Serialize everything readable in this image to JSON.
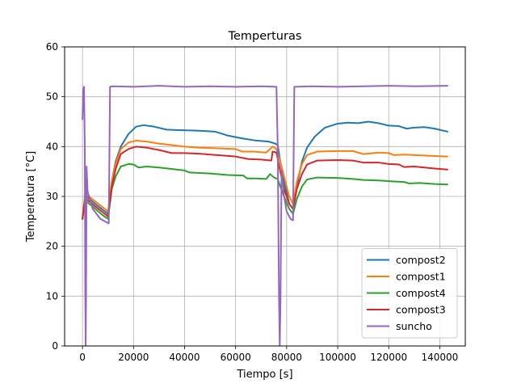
{
  "chart_data": {
    "type": "line",
    "title": "Temperturas",
    "xlabel": "Tiempo [s]",
    "ylabel": "Temperatura [°C]",
    "xlim": [
      -7000,
      150000
    ],
    "ylim": [
      0,
      60
    ],
    "xticks": [
      0,
      20000,
      40000,
      60000,
      80000,
      100000,
      120000,
      140000
    ],
    "yticks": [
      0,
      10,
      20,
      30,
      40,
      50,
      60
    ],
    "grid": true,
    "legend_position": "lower-right",
    "series": [
      {
        "name": "compost2",
        "color": "#1f77b4",
        "points": [
          [
            0,
            25.5
          ],
          [
            1000,
            30.0
          ],
          [
            2000,
            29.8
          ],
          [
            5000,
            28.5
          ],
          [
            8000,
            27.3
          ],
          [
            10000,
            26.5
          ],
          [
            11500,
            33.0
          ],
          [
            13000,
            37.0
          ],
          [
            15000,
            40.0
          ],
          [
            18000,
            42.5
          ],
          [
            21000,
            44.0
          ],
          [
            24000,
            44.3
          ],
          [
            28000,
            44.0
          ],
          [
            33000,
            43.4
          ],
          [
            38000,
            43.3
          ],
          [
            45000,
            43.2
          ],
          [
            52000,
            43.0
          ],
          [
            57000,
            42.2
          ],
          [
            62000,
            41.7
          ],
          [
            68000,
            41.2
          ],
          [
            73000,
            41.0
          ],
          [
            75500,
            40.6
          ],
          [
            76500,
            40.3
          ],
          [
            77500,
            37.0
          ],
          [
            79000,
            33.0
          ],
          [
            81000,
            28.5
          ],
          [
            82500,
            27.5
          ],
          [
            84000,
            32.0
          ],
          [
            86000,
            37.0
          ],
          [
            88000,
            39.8
          ],
          [
            91000,
            42.0
          ],
          [
            95000,
            43.8
          ],
          [
            100000,
            44.6
          ],
          [
            104000,
            44.8
          ],
          [
            108000,
            44.7
          ],
          [
            112000,
            45.0
          ],
          [
            116000,
            44.7
          ],
          [
            120000,
            44.2
          ],
          [
            124000,
            44.1
          ],
          [
            127000,
            43.6
          ],
          [
            130000,
            43.8
          ],
          [
            134000,
            43.9
          ],
          [
            138000,
            43.6
          ],
          [
            143000,
            43.0
          ]
        ]
      },
      {
        "name": "compost1",
        "color": "#ff7f0e",
        "points": [
          [
            0,
            25.5
          ],
          [
            1000,
            30.5
          ],
          [
            2000,
            30.2
          ],
          [
            5000,
            29.0
          ],
          [
            8000,
            27.8
          ],
          [
            10000,
            27.0
          ],
          [
            11500,
            33.0
          ],
          [
            13000,
            36.5
          ],
          [
            15000,
            39.5
          ],
          [
            18000,
            40.8
          ],
          [
            21000,
            41.2
          ],
          [
            25000,
            41.0
          ],
          [
            30000,
            40.6
          ],
          [
            35000,
            40.3
          ],
          [
            40000,
            40.0
          ],
          [
            45000,
            39.8
          ],
          [
            50000,
            39.7
          ],
          [
            55000,
            39.6
          ],
          [
            60000,
            39.5
          ],
          [
            62500,
            39.0
          ],
          [
            67000,
            39.0
          ],
          [
            72000,
            38.8
          ],
          [
            74500,
            40.0
          ],
          [
            76000,
            39.5
          ],
          [
            77500,
            37.0
          ],
          [
            79000,
            34.0
          ],
          [
            81000,
            30.0
          ],
          [
            82500,
            28.5
          ],
          [
            84000,
            33.0
          ],
          [
            86000,
            36.5
          ],
          [
            88000,
            38.3
          ],
          [
            92000,
            39.0
          ],
          [
            100000,
            39.1
          ],
          [
            106000,
            39.1
          ],
          [
            110000,
            38.5
          ],
          [
            116000,
            38.8
          ],
          [
            120000,
            38.7
          ],
          [
            122000,
            38.3
          ],
          [
            126000,
            38.4
          ],
          [
            130000,
            38.3
          ],
          [
            134000,
            38.2
          ],
          [
            138000,
            38.1
          ],
          [
            143000,
            38.0
          ]
        ]
      },
      {
        "name": "compost4",
        "color": "#2ca02c",
        "points": [
          [
            0,
            25.5
          ],
          [
            1000,
            29.0
          ],
          [
            2000,
            28.8
          ],
          [
            5000,
            27.5
          ],
          [
            8000,
            26.2
          ],
          [
            10000,
            25.5
          ],
          [
            11500,
            31.5
          ],
          [
            13000,
            34.0
          ],
          [
            15000,
            36.0
          ],
          [
            18000,
            36.5
          ],
          [
            20000,
            36.4
          ],
          [
            22000,
            35.8
          ],
          [
            25000,
            36.0
          ],
          [
            30000,
            35.8
          ],
          [
            40000,
            35.2
          ],
          [
            42000,
            34.8
          ],
          [
            50000,
            34.6
          ],
          [
            57000,
            34.3
          ],
          [
            63000,
            34.2
          ],
          [
            64500,
            33.6
          ],
          [
            68000,
            33.6
          ],
          [
            72000,
            33.5
          ],
          [
            73500,
            34.5
          ],
          [
            75000,
            33.8
          ],
          [
            76500,
            33.5
          ],
          [
            77500,
            32.0
          ],
          [
            79000,
            30.0
          ],
          [
            81000,
            27.5
          ],
          [
            82500,
            26.5
          ],
          [
            84000,
            29.5
          ],
          [
            86000,
            32.0
          ],
          [
            88000,
            33.4
          ],
          [
            92000,
            33.8
          ],
          [
            100000,
            33.7
          ],
          [
            106000,
            33.5
          ],
          [
            110000,
            33.3
          ],
          [
            116000,
            33.2
          ],
          [
            122000,
            33.0
          ],
          [
            126000,
            32.9
          ],
          [
            128000,
            32.6
          ],
          [
            132000,
            32.7
          ],
          [
            138000,
            32.5
          ],
          [
            143000,
            32.4
          ]
        ]
      },
      {
        "name": "compost3",
        "color": "#d62728",
        "points": [
          [
            0,
            25.5
          ],
          [
            1000,
            29.5
          ],
          [
            2000,
            29.3
          ],
          [
            5000,
            28.0
          ],
          [
            8000,
            26.8
          ],
          [
            10000,
            26.0
          ],
          [
            11500,
            32.0
          ],
          [
            13000,
            35.5
          ],
          [
            15000,
            38.5
          ],
          [
            18000,
            39.5
          ],
          [
            21000,
            40.0
          ],
          [
            25000,
            39.8
          ],
          [
            30000,
            39.3
          ],
          [
            35000,
            38.7
          ],
          [
            40000,
            38.7
          ],
          [
            45000,
            38.6
          ],
          [
            50000,
            38.4
          ],
          [
            55000,
            38.2
          ],
          [
            60000,
            38.0
          ],
          [
            65000,
            37.5
          ],
          [
            70000,
            37.4
          ],
          [
            74000,
            37.2
          ],
          [
            74500,
            39.0
          ],
          [
            76000,
            38.8
          ],
          [
            77500,
            35.0
          ],
          [
            79000,
            31.5
          ],
          [
            81000,
            28.5
          ],
          [
            82500,
            27.5
          ],
          [
            84000,
            31.5
          ],
          [
            86000,
            34.5
          ],
          [
            88000,
            36.4
          ],
          [
            92000,
            37.2
          ],
          [
            100000,
            37.3
          ],
          [
            106000,
            37.2
          ],
          [
            110000,
            36.8
          ],
          [
            116000,
            36.8
          ],
          [
            120000,
            36.5
          ],
          [
            124000,
            36.4
          ],
          [
            126000,
            35.9
          ],
          [
            130000,
            36.0
          ],
          [
            134000,
            35.8
          ],
          [
            138000,
            35.6
          ],
          [
            143000,
            35.4
          ]
        ]
      },
      {
        "name": "suncho",
        "color": "#9467bd",
        "points": [
          [
            0,
            45.5
          ],
          [
            300,
            51.5
          ],
          [
            600,
            52.0
          ],
          [
            900,
            40.0
          ],
          [
            1100,
            10.0
          ],
          [
            1250,
            0.0
          ],
          [
            1400,
            10.0
          ],
          [
            1600,
            36.0
          ],
          [
            2000,
            31.0
          ],
          [
            4000,
            27.5
          ],
          [
            7000,
            25.5
          ],
          [
            9500,
            24.8
          ],
          [
            10300,
            24.6
          ],
          [
            10800,
            52.0
          ],
          [
            12000,
            52.1
          ],
          [
            20000,
            52.0
          ],
          [
            30000,
            52.2
          ],
          [
            40000,
            52.0
          ],
          [
            50000,
            52.1
          ],
          [
            60000,
            52.0
          ],
          [
            70000,
            52.1
          ],
          [
            76000,
            52.0
          ],
          [
            76500,
            40.0
          ],
          [
            77000,
            10.0
          ],
          [
            77300,
            0.0
          ],
          [
            77600,
            10.0
          ],
          [
            78000,
            35.0
          ],
          [
            79000,
            30.0
          ],
          [
            80000,
            27.0
          ],
          [
            81500,
            25.5
          ],
          [
            82500,
            25.2
          ],
          [
            83000,
            52.0
          ],
          [
            90000,
            52.1
          ],
          [
            100000,
            52.0
          ],
          [
            110000,
            52.1
          ],
          [
            120000,
            52.2
          ],
          [
            130000,
            52.1
          ],
          [
            143000,
            52.2
          ]
        ]
      }
    ]
  }
}
